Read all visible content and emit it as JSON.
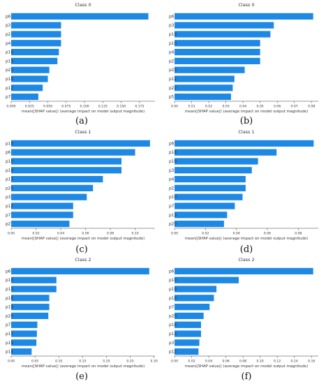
{
  "chart_data": [
    {
      "id": "a",
      "sublabel": "(a)",
      "type": "bar",
      "orientation": "horizontal",
      "title": "Class 0",
      "xlabel": "mean(|SHAP value|) (average impact on model output magnitude)",
      "categories": [
        "p6",
        "p3",
        "p2",
        "p4",
        "p16",
        "p19",
        "p23",
        "p18",
        "p12",
        "p7"
      ],
      "values": [
        0.187,
        0.068,
        0.068,
        0.068,
        0.065,
        0.063,
        0.052,
        0.05,
        0.043,
        0.037
      ],
      "xlim": [
        0,
        0.196
      ],
      "xticks": [
        0,
        0.025,
        0.05,
        0.075,
        0.1,
        0.125,
        0.15,
        0.175
      ],
      "xtick_labels": [
        "0.000",
        "0.025",
        "0.050",
        "0.075",
        "0.100",
        "0.125",
        "0.150",
        "0.175"
      ],
      "bar_color": "#1e88e5",
      "grid": false
    },
    {
      "id": "b",
      "sublabel": "(b)",
      "type": "bar",
      "orientation": "horizontal",
      "title": "Class 0",
      "xlabel": "mean(|SHAP value|) (average impact on model output magnitude)",
      "categories": [
        "p6",
        "p3",
        "p19",
        "p10",
        "p4",
        "p2",
        "p23",
        "p12",
        "p22",
        "p5"
      ],
      "values": [
        0.081,
        0.058,
        0.056,
        0.05,
        0.05,
        0.05,
        0.041,
        0.035,
        0.034,
        0.033
      ],
      "xlim": [
        0,
        0.084
      ],
      "xticks": [
        0,
        0.01,
        0.02,
        0.03,
        0.04,
        0.05,
        0.06,
        0.07,
        0.08
      ],
      "xtick_labels": [
        "0.00",
        "0.01",
        "0.02",
        "0.03",
        "0.04",
        "0.05",
        "0.06",
        "0.07",
        "0.08"
      ],
      "bar_color": "#1e88e5",
      "grid": false
    },
    {
      "id": "c",
      "sublabel": "(c)",
      "type": "bar",
      "orientation": "horizontal",
      "title": "Class 1",
      "xlabel": "mean(|SHAP value|) (average impact on model output magnitude)",
      "categories": [
        "p18",
        "p6",
        "p10",
        "p19",
        "p13",
        "p20",
        "p3",
        "p12",
        "p7",
        "p2"
      ],
      "values": [
        0.112,
        0.1,
        0.089,
        0.089,
        0.074,
        0.066,
        0.061,
        0.05,
        0.05,
        0.047
      ],
      "xlim": [
        0,
        0.116
      ],
      "xticks": [
        0,
        0.02,
        0.04,
        0.06,
        0.08,
        0.1
      ],
      "xtick_labels": [
        "0.00",
        "0.02",
        "0.04",
        "0.06",
        "0.08",
        "0.10"
      ],
      "bar_color": "#1e88e5",
      "grid": false
    },
    {
      "id": "d",
      "sublabel": "(d)",
      "type": "bar",
      "orientation": "horizontal",
      "title": "Class 1",
      "xlabel": "mean(|SHAP value|) (average impact on model output magnitude)",
      "categories": [
        "p6",
        "p18",
        "p19",
        "p3",
        "p4",
        "p2",
        "p10",
        "p7",
        "p13",
        "p20"
      ],
      "values": [
        0.09,
        0.066,
        0.054,
        0.05,
        0.046,
        0.046,
        0.044,
        0.039,
        0.034,
        0.032
      ],
      "xlim": [
        0,
        0.093
      ],
      "xticks": [
        0,
        0.02,
        0.04,
        0.06,
        0.08
      ],
      "xtick_labels": [
        "0.00",
        "0.02",
        "0.04",
        "0.06",
        "0.08"
      ],
      "bar_color": "#1e88e5",
      "grid": false
    },
    {
      "id": "e",
      "sublabel": "(e)",
      "type": "bar",
      "orientation": "horizontal",
      "title": "Class 2",
      "xlabel": "mean(|SHAP value|) (average impact on model output magnitude)",
      "categories": [
        "p6",
        "p10",
        "p13",
        "p16",
        "p18",
        "p20",
        "p7",
        "p17",
        "p19",
        "p14"
      ],
      "values": [
        0.29,
        0.095,
        0.095,
        0.08,
        0.08,
        0.078,
        0.055,
        0.054,
        0.053,
        0.043
      ],
      "xlim": [
        0,
        0.302
      ],
      "xticks": [
        0,
        0.05,
        0.1,
        0.15,
        0.2,
        0.25,
        0.3
      ],
      "xtick_labels": [
        "0.00",
        "0.05",
        "0.10",
        "0.15",
        "0.20",
        "0.25",
        "0.30"
      ],
      "bar_color": "#1e88e5",
      "grid": false
    },
    {
      "id": "f",
      "sublabel": "(f)",
      "type": "bar",
      "orientation": "horizontal",
      "title": "Class 2",
      "xlabel": "mean(|SHAP value|) (average impact on model output magnitude)",
      "categories": [
        "p6",
        "p10",
        "p19",
        "p18",
        "p7",
        "p20",
        "p16",
        "p13",
        "p3",
        "p12"
      ],
      "values": [
        0.162,
        0.075,
        0.049,
        0.046,
        0.041,
        0.034,
        0.031,
        0.031,
        0.029,
        0.028
      ],
      "xlim": [
        0,
        0.168
      ],
      "xticks": [
        0,
        0.02,
        0.04,
        0.06,
        0.08,
        0.1,
        0.12,
        0.14,
        0.16
      ],
      "xtick_labels": [
        "0.00",
        "0.02",
        "0.04",
        "0.06",
        "0.08",
        "0.10",
        "0.12",
        "0.14",
        "0.16"
      ],
      "bar_color": "#1e88e5",
      "grid": false
    }
  ]
}
